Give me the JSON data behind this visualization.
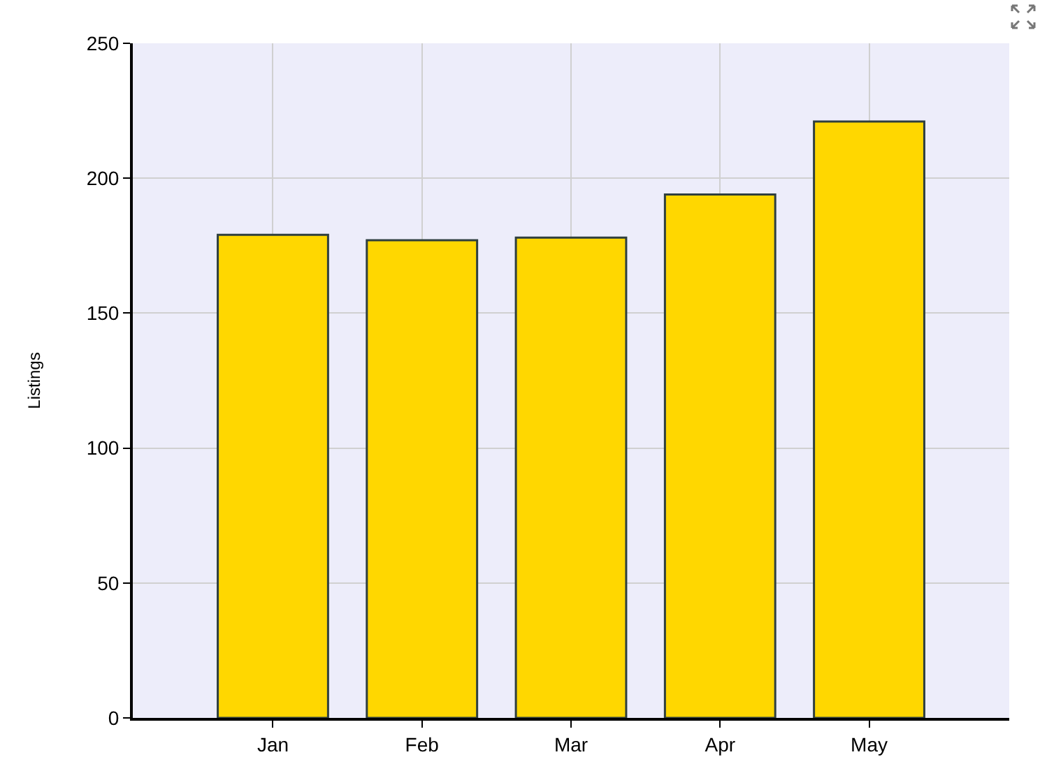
{
  "chart_data": {
    "type": "bar",
    "ylabel": "Listings",
    "categories": [
      "Jan",
      "Feb",
      "Mar",
      "Apr",
      "May"
    ],
    "values": [
      179,
      177,
      178,
      194,
      221
    ],
    "color": "#ffd700",
    "ylim": [
      0,
      250
    ],
    "yticks": [
      0,
      50,
      100,
      150,
      200,
      250
    ],
    "grid": true
  }
}
